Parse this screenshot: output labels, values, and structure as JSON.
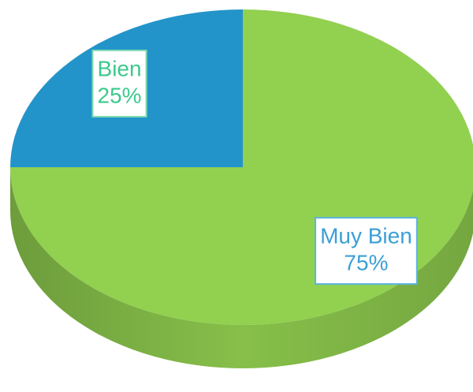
{
  "chart_data": {
    "type": "pie",
    "categories": [
      "Muy Bien",
      "Bien"
    ],
    "values": [
      75,
      25
    ],
    "value_labels": [
      "75%",
      "25%"
    ],
    "colors": [
      "#92d050",
      "#2394c9"
    ]
  }
}
